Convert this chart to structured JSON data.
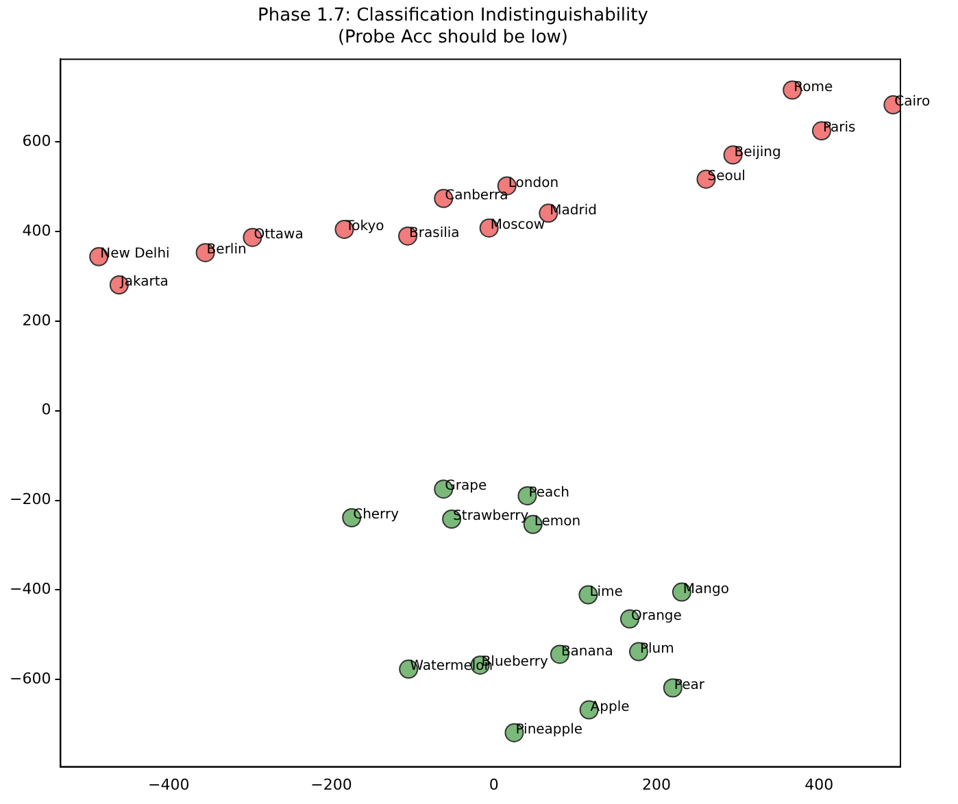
{
  "chart_data": {
    "type": "scatter",
    "title": "Phase 1.7: Classification Indistinguishability",
    "subtitle": "(Probe Acc should be low)",
    "series": [
      {
        "color": "#ef5a5a",
        "x": [
          367,
          491,
          403,
          294,
          261,
          16,
          -62,
          67,
          -6,
          -184,
          -106,
          -297,
          -355,
          -486,
          -461
        ],
        "values": [
          716,
          683,
          625,
          571,
          517,
          502,
          474,
          441,
          408,
          405,
          390,
          387,
          353,
          344,
          281
        ]
      },
      {
        "color": "#5aa85a",
        "x": [
          -62,
          41,
          -175,
          -52,
          48,
          116,
          231,
          167,
          178,
          81,
          -17,
          -105,
          220,
          117,
          25
        ],
        "values": [
          -175,
          -190,
          -239,
          -242,
          -254,
          -411,
          -405,
          -465,
          -538,
          -544,
          -568,
          -577,
          -619,
          -668,
          -719
        ]
      }
    ],
    "annotations": [
      {
        "text": "Rome",
        "x": 367,
        "y": 716
      },
      {
        "text": "Cairo",
        "x": 491,
        "y": 683
      },
      {
        "text": "Paris",
        "x": 403,
        "y": 625
      },
      {
        "text": "Beijing",
        "x": 294,
        "y": 571
      },
      {
        "text": "Seoul",
        "x": 261,
        "y": 517
      },
      {
        "text": "London",
        "x": 16,
        "y": 502
      },
      {
        "text": "Canberra",
        "x": -62,
        "y": 474
      },
      {
        "text": "Madrid",
        "x": 67,
        "y": 441
      },
      {
        "text": "Moscow",
        "x": -6,
        "y": 408
      },
      {
        "text": "Tokyo",
        "x": -184,
        "y": 405
      },
      {
        "text": "Brasilia",
        "x": -106,
        "y": 390
      },
      {
        "text": "Ottawa",
        "x": -297,
        "y": 387
      },
      {
        "text": "Berlin",
        "x": -355,
        "y": 353
      },
      {
        "text": "New Delhi",
        "x": -486,
        "y": 344
      },
      {
        "text": "Jakarta",
        "x": -461,
        "y": 281
      },
      {
        "text": "Grape",
        "x": -62,
        "y": -175
      },
      {
        "text": "Peach",
        "x": 41,
        "y": -190
      },
      {
        "text": "Cherry",
        "x": -175,
        "y": -239
      },
      {
        "text": "Strawberry",
        "x": -52,
        "y": -242
      },
      {
        "text": "Lemon",
        "x": 48,
        "y": -254
      },
      {
        "text": "Lime",
        "x": 116,
        "y": -411
      },
      {
        "text": "Mango",
        "x": 231,
        "y": -405
      },
      {
        "text": "Orange",
        "x": 167,
        "y": -465
      },
      {
        "text": "Plum",
        "x": 178,
        "y": -538
      },
      {
        "text": "Banana",
        "x": 81,
        "y": -544
      },
      {
        "text": "Blueberry",
        "x": -17,
        "y": -568
      },
      {
        "text": "Watermelon",
        "x": -105,
        "y": -577
      },
      {
        "text": "Pear",
        "x": 220,
        "y": -619
      },
      {
        "text": "Apple",
        "x": 117,
        "y": -668
      },
      {
        "text": "Pineapple",
        "x": 25,
        "y": -719
      }
    ],
    "xlim": [
      -533,
      500
    ],
    "ylim": [
      -795,
      785
    ],
    "xticks": [
      -400,
      -200,
      0,
      200,
      400
    ],
    "yticks": [
      -600,
      -400,
      -200,
      0,
      200,
      400,
      600
    ],
    "grid": false,
    "legend": false,
    "marker": "circle"
  }
}
